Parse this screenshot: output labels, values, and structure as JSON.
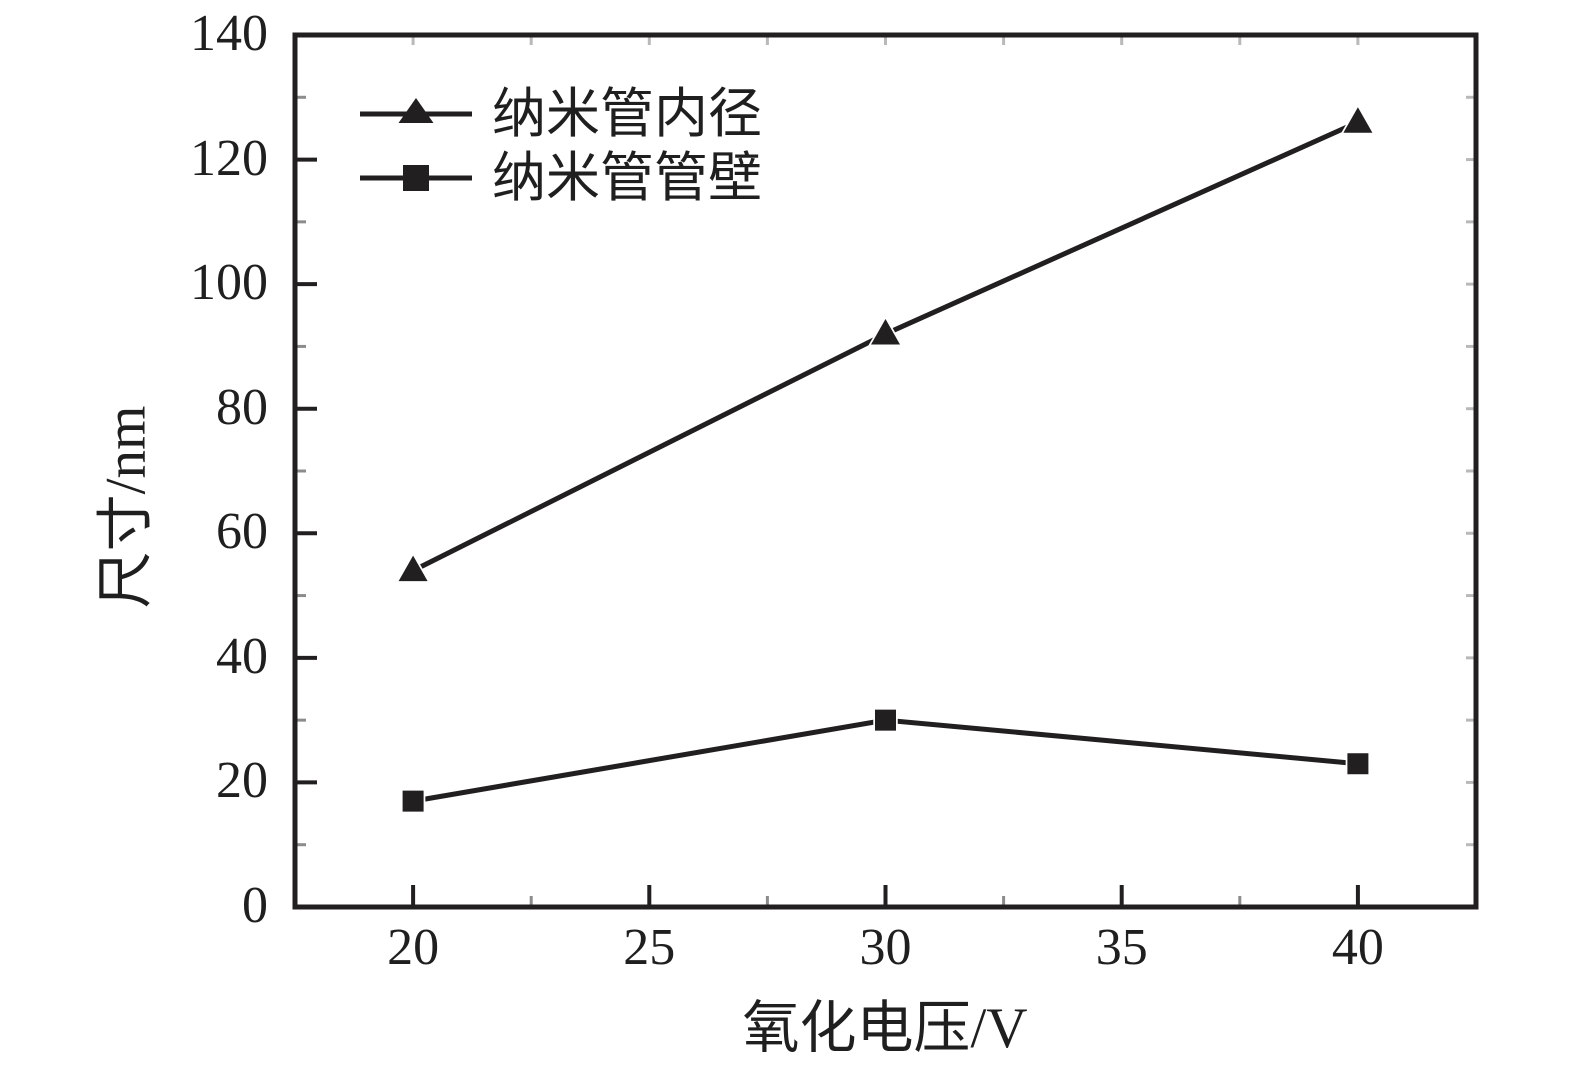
{
  "chart_data": {
    "type": "line",
    "title": "",
    "xlabel": "氧化电压/V",
    "ylabel": "尺寸/nm",
    "x": [
      20,
      30,
      40
    ],
    "series": [
      {
        "name": "纳米管内径",
        "marker": "triangle",
        "values": [
          54,
          92,
          126
        ]
      },
      {
        "name": "纳米管管壁",
        "marker": "square",
        "values": [
          17,
          30,
          23
        ]
      }
    ],
    "xlim": [
      17.5,
      42.5
    ],
    "ylim": [
      0,
      140
    ],
    "xticks": [
      20,
      25,
      30,
      35,
      40
    ],
    "yticks": [
      0,
      20,
      40,
      60,
      80,
      100,
      120,
      140
    ],
    "x_minor_step": 2.5,
    "y_minor_step": 10,
    "grid": false,
    "legend_position": "top-left-inside",
    "colors": {
      "line": "#221f20",
      "axis": "#221f20",
      "minor_tick": "#8c8c8c",
      "mirror_tick": "#b9b9b9",
      "background": "#ffffff"
    }
  }
}
